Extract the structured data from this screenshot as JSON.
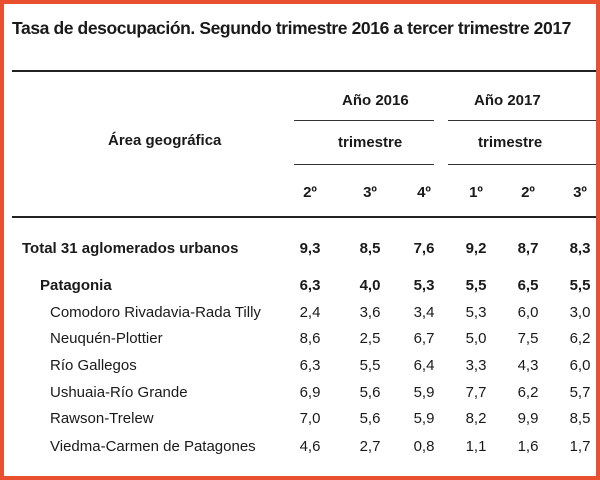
{
  "title": "Tasa de desocupación. Segundo trimestre 2016 a tercer trimestre 2017",
  "header": {
    "area_label": "Área geográfica",
    "year_2016": "Año 2016",
    "year_2017": "Año 2017",
    "trimestre_2016": "trimestre",
    "trimestre_2017": "trimestre",
    "quarters": [
      "2º",
      "3º",
      "4º",
      "1º",
      "2º",
      "3º"
    ]
  },
  "chart_data": {
    "type": "table",
    "columns": [
      "2º 2016",
      "3º 2016",
      "4º 2016",
      "1º 2017",
      "2º 2017",
      "3º 2017"
    ],
    "rows": [
      {
        "name": "Total 31 aglomerados urbanos",
        "values": [
          "9,3",
          "8,5",
          "7,6",
          "9,2",
          "8,7",
          "8,3"
        ],
        "style": "bold"
      },
      {
        "name": "Patagonia",
        "values": [
          "6,3",
          "4,0",
          "5,3",
          "5,5",
          "6,5",
          "5,5"
        ],
        "style": "bold"
      },
      {
        "name": "Comodoro Rivadavia-Rada Tilly",
        "values": [
          "2,4",
          "3,6",
          "3,4",
          "5,3",
          "6,0",
          "3,0"
        ],
        "style": "normal"
      },
      {
        "name": "Neuquén-Plottier",
        "values": [
          "8,6",
          "2,5",
          "6,7",
          "5,0",
          "7,5",
          "6,2"
        ],
        "style": "normal"
      },
      {
        "name": "Río Gallegos",
        "values": [
          "6,3",
          "5,5",
          "6,4",
          "3,3",
          "4,3",
          "6,0"
        ],
        "style": "normal"
      },
      {
        "name": "Ushuaia-Río Grande",
        "values": [
          "6,9",
          "5,6",
          "5,9",
          "7,7",
          "6,2",
          "5,7"
        ],
        "style": "normal"
      },
      {
        "name": "Rawson-Trelew",
        "values": [
          "7,0",
          "5,6",
          "5,9",
          "8,2",
          "9,9",
          "8,5"
        ],
        "style": "normal"
      },
      {
        "name": "Viedma-Carmen de Patagones",
        "values": [
          "4,6",
          "2,7",
          "0,8",
          "1,1",
          "1,6",
          "1,7"
        ],
        "style": "normal"
      }
    ]
  }
}
